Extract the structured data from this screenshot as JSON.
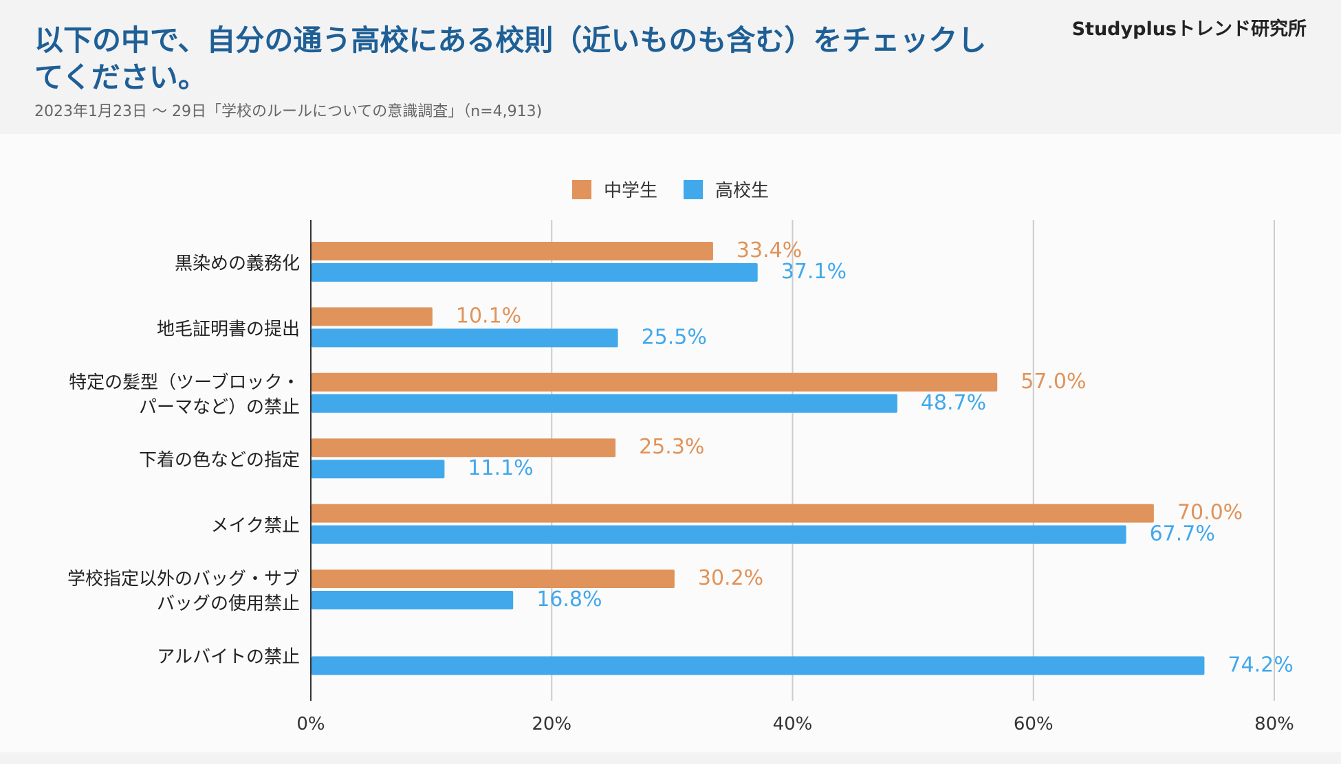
{
  "header": {
    "title": "以下の中で、自分の通う高校にある校則（近いものも含む）をチェックしてください。",
    "subtitle": "2023年1月23日 〜 29日「学校のルールについての意識調査」（n=4,913)",
    "brand": "Studyplusトレンド研究所"
  },
  "colors": {
    "middle": "#e0935a",
    "high": "#41a8ec"
  },
  "chart_data": {
    "type": "bar",
    "orientation": "horizontal",
    "categories": [
      [
        "黒染めの義務化"
      ],
      [
        "地毛証明書の提出"
      ],
      [
        "特定の髪型（ツーブロック・",
        "パーマなど）の禁止"
      ],
      [
        "下着の色などの指定"
      ],
      [
        "メイク禁止"
      ],
      [
        "学校指定以外のバッグ・サブ",
        "バッグの使用禁止"
      ],
      [
        "アルバイトの禁止"
      ]
    ],
    "series": [
      {
        "name": "中学生",
        "values": [
          33.4,
          10.1,
          57.0,
          25.3,
          70.0,
          30.2,
          null
        ],
        "labels": [
          "33.4%",
          "10.1%",
          "57.0%",
          "25.3%",
          "70.0%",
          "30.2%",
          null
        ]
      },
      {
        "name": "高校生",
        "values": [
          37.1,
          25.5,
          48.7,
          11.1,
          67.7,
          16.8,
          74.2
        ],
        "labels": [
          "37.1%",
          "25.5%",
          "48.7%",
          "11.1%",
          "67.7%",
          "16.8%",
          "74.2%"
        ]
      }
    ],
    "xlim": [
      0,
      80
    ],
    "xticks": [
      "0%",
      "20%",
      "40%",
      "60%",
      "80%"
    ],
    "grid": true,
    "legend": "top-center"
  }
}
